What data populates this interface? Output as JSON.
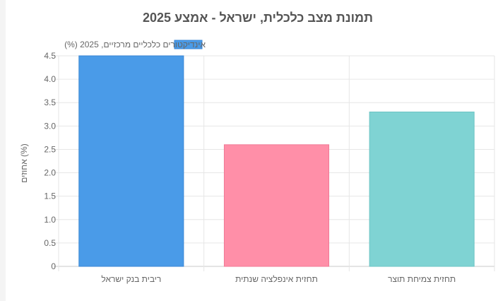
{
  "chart_data": {
    "type": "bar",
    "title": "תמונת מצב כלכלית, ישראל - אמצע 2025",
    "ylabel": "אחוזים (%)",
    "xlabel": "",
    "categories": [
      "ריבית בנק ישראל",
      "תחזית אינפלציה שנתית",
      "תחזית צמיחת תוצר"
    ],
    "series": [
      {
        "name": "אינדיקטורים כלכליים מרכזיים, 2025 (%)",
        "values": [
          4.5,
          2.6,
          3.3
        ]
      }
    ],
    "colors": {
      "fill": [
        "#4a9be8",
        "#ff8fa8",
        "#7fd3d3"
      ],
      "stroke": [
        "#3a86d4",
        "#f07a95",
        "#6cc4c4"
      ],
      "legend_fill": "#4a9be8",
      "legend_stroke": "#3a86d4"
    },
    "ylim": [
      0,
      4.5
    ],
    "yticks": [
      "0",
      "0.5",
      "1.0",
      "1.5",
      "2.0",
      "2.5",
      "3.0",
      "3.5",
      "4.0",
      "4.5"
    ],
    "grid": true,
    "legend_position": "top-center"
  }
}
